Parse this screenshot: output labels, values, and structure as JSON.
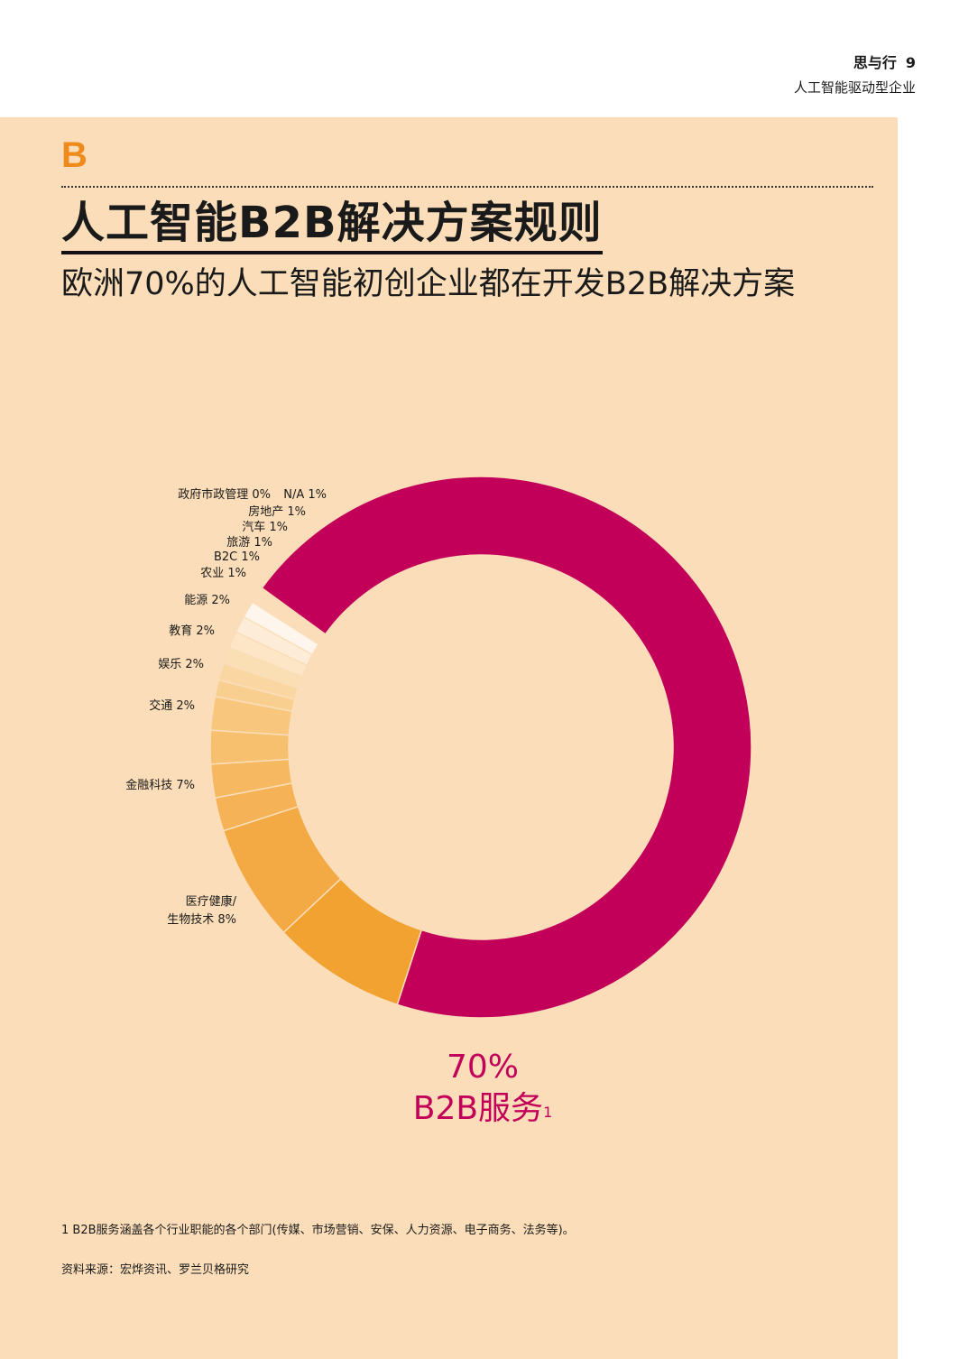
{
  "header": {
    "section": "思与行",
    "page_number": "9",
    "subtitle": "人工智能驱动型企业"
  },
  "panel": {
    "letter": "B",
    "title": "人工智能B2B解决方案规则",
    "subtitle": "欧洲70%的人工智能初创企业都在开发B2B解决方案"
  },
  "chart_data": {
    "type": "pie",
    "donut": true,
    "title": "",
    "slices": [
      {
        "label": "B2B服务",
        "value": 70,
        "color": "#c2005a"
      },
      {
        "label": "医疗健康/生物技术",
        "value": 8,
        "color": "#f2a231"
      },
      {
        "label": "金融科技",
        "value": 7,
        "color": "#f4aa44"
      },
      {
        "label": "交通",
        "value": 2,
        "color": "#f5b256"
      },
      {
        "label": "娱乐",
        "value": 2,
        "color": "#f6b962"
      },
      {
        "label": "教育",
        "value": 2,
        "color": "#f7c06e"
      },
      {
        "label": "能源",
        "value": 2,
        "color": "#f8c77d"
      },
      {
        "label": "农业",
        "value": 1,
        "color": "#f9cf8f"
      },
      {
        "label": "B2C",
        "value": 1,
        "color": "#fad7a2"
      },
      {
        "label": "旅游",
        "value": 1,
        "color": "#fbdfb4"
      },
      {
        "label": "汽车",
        "value": 1,
        "color": "#fce6c6"
      },
      {
        "label": "房地产",
        "value": 1,
        "color": "#fdedd8"
      },
      {
        "label": "政府市政管理",
        "value": 0,
        "color": "#fef3e6"
      },
      {
        "label": "N/A",
        "value": 1,
        "color": "#fef6ec"
      }
    ],
    "labels_text": [
      "",
      "医疗健康/生物技术 8%",
      "金融科技 7%",
      "交通 2%",
      "娱乐 2%",
      "教育 2%",
      "能源 2%",
      "农业 1%",
      "B2C 1%",
      "旅游 1%",
      "汽车 1%",
      "房地产 1%",
      "政府市政管理 0%",
      "N/A 1%"
    ],
    "highlight": {
      "value": "70%",
      "label": "B2B服务",
      "footnote_mark": "1"
    }
  },
  "footnote": "1  B2B服务涵盖各个行业职能的各个部门(传媒、市场营销、安保、人力资源、电子商务、法务等)。",
  "source": "资料来源：宏烨资讯、罗兰贝格研究"
}
